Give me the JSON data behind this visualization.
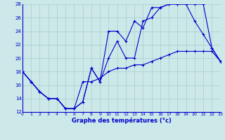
{
  "xlabel": "Graphe des températures (°c)",
  "bg_color": "#cde8e8",
  "line_color": "#0000cc",
  "grid_color": "#aacccc",
  "xlim": [
    0,
    23
  ],
  "ylim": [
    12,
    28
  ],
  "xticks": [
    0,
    1,
    2,
    3,
    4,
    5,
    6,
    7,
    8,
    9,
    10,
    11,
    12,
    13,
    14,
    15,
    16,
    17,
    18,
    19,
    20,
    21,
    22,
    23
  ],
  "yticks": [
    12,
    14,
    16,
    18,
    20,
    22,
    24,
    26,
    28
  ],
  "line1_x": [
    0,
    1,
    2,
    3,
    4,
    5,
    6,
    7,
    8,
    9,
    10,
    11,
    12,
    13,
    14,
    15,
    16,
    17,
    18,
    19,
    20,
    21,
    22,
    23
  ],
  "line1_y": [
    18,
    16.5,
    15,
    14,
    14,
    12.5,
    12.5,
    13.5,
    18.5,
    16.5,
    20,
    22.5,
    20,
    20,
    25.5,
    26,
    27.5,
    28,
    28,
    28,
    25.5,
    23.5,
    21.5,
    19.5
  ],
  "line2_x": [
    0,
    1,
    2,
    3,
    4,
    5,
    6,
    7,
    8,
    9,
    10,
    11,
    12,
    13,
    14,
    15,
    16,
    17,
    18,
    19,
    20,
    21,
    22,
    23
  ],
  "line2_y": [
    18,
    16.5,
    15,
    14,
    14,
    12.5,
    12.5,
    16.5,
    16.5,
    17,
    18,
    18.5,
    18.5,
    19,
    19,
    19.5,
    20,
    20.5,
    21,
    21,
    21,
    21,
    21,
    19.5
  ],
  "line3_x": [
    0,
    1,
    2,
    3,
    4,
    5,
    6,
    7,
    8,
    9,
    10,
    11,
    12,
    13,
    14,
    15,
    16,
    17,
    18,
    19,
    20,
    21,
    22,
    23
  ],
  "line3_y": [
    18,
    16.5,
    15,
    14,
    14,
    12.5,
    12.5,
    13.5,
    18.5,
    16.5,
    24,
    24,
    22.5,
    25.5,
    24.5,
    27.5,
    27.5,
    28,
    28,
    28,
    28,
    28,
    21.5,
    19.5
  ]
}
